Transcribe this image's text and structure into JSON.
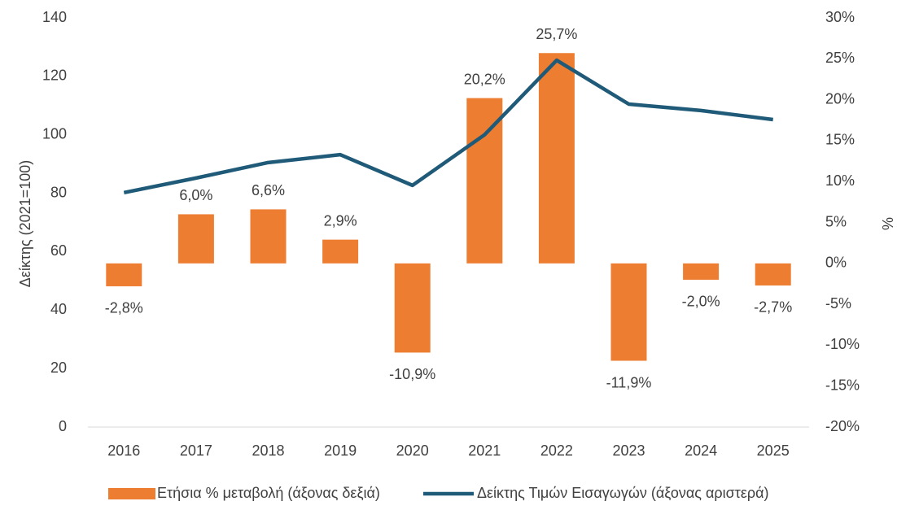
{
  "chart_data": {
    "type": "bar-line",
    "categories": [
      "2016",
      "2017",
      "2018",
      "2019",
      "2020",
      "2021",
      "2022",
      "2023",
      "2024",
      "2025"
    ],
    "series": [
      {
        "name": "Ετήσια % μεταβολή (άξονας δεξιά)",
        "type": "bar",
        "axis": "y2",
        "color": "#ed7d31",
        "values": [
          -2.8,
          6.0,
          6.6,
          2.9,
          -10.9,
          20.2,
          25.7,
          -11.9,
          -2.0,
          -2.7
        ],
        "value_labels": [
          "-2,8%",
          "6,0%",
          "6,6%",
          "2,9%",
          "-10,9%",
          "20,2%",
          "25,7%",
          "-11,9%",
          "-2,0%",
          "-2,7%"
        ]
      },
      {
        "name": "Δείκτης Τιμών Εισαγωγών (άξονας αριστερά)",
        "type": "line",
        "axis": "y",
        "color": "#1f5a78",
        "values": [
          80.2,
          85.2,
          90.5,
          93.2,
          82.7,
          100,
          125.5,
          110.5,
          108.3,
          105.2
        ]
      }
    ],
    "ylabel": "Δείκτης (2021=100)",
    "y2label": "%",
    "ylim": [
      0,
      140
    ],
    "yticks": [
      0,
      20,
      40,
      60,
      80,
      100,
      120,
      140
    ],
    "y2lim": [
      -20,
      30
    ],
    "y2ticks": [
      {
        "value": -20,
        "label": "-20%"
      },
      {
        "value": -15,
        "label": "-15%"
      },
      {
        "value": -10,
        "label": "-10%"
      },
      {
        "value": -5,
        "label": "-5%"
      },
      {
        "value": 0,
        "label": "0%"
      },
      {
        "value": 5,
        "label": "5%"
      },
      {
        "value": 10,
        "label": "10%"
      },
      {
        "value": 15,
        "label": "15%"
      },
      {
        "value": 20,
        "label": "20%"
      },
      {
        "value": 25,
        "label": "25%"
      },
      {
        "value": 30,
        "label": "30%"
      }
    ],
    "legend": "bottom"
  }
}
